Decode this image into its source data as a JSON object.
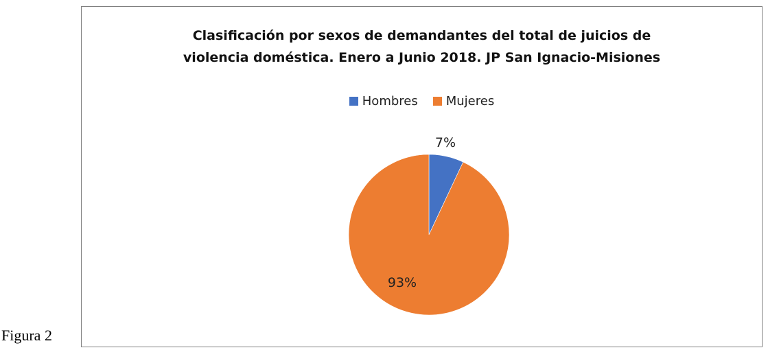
{
  "figure_caption": "Figura 2",
  "colors": {
    "hombres": "#4472c4",
    "mujeres": "#ed7d31"
  },
  "chart_data": {
    "type": "pie",
    "title_lines": [
      "Clasificación por sexos de demandantes del total de juicios de",
      "violencia doméstica. Enero a Junio 2018. JP San Ignacio-Misiones"
    ],
    "legend_placement": "top",
    "slices": [
      {
        "name": "Hombres",
        "value": 7,
        "label": "7%",
        "color": "#4472c4"
      },
      {
        "name": "Mujeres",
        "value": 93,
        "label": "93%",
        "color": "#ed7d31"
      }
    ]
  }
}
